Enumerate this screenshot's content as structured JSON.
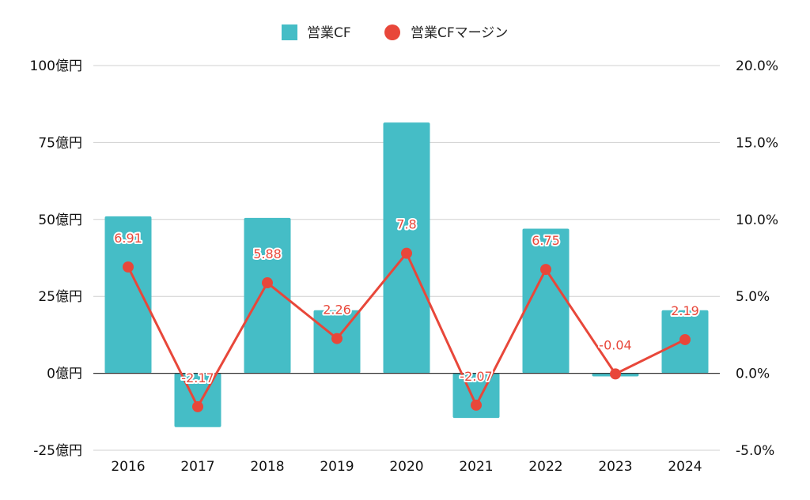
{
  "chart_data": {
    "type": "bar",
    "categories": [
      "2016",
      "2017",
      "2018",
      "2019",
      "2020",
      "2021",
      "2022",
      "2023",
      "2024"
    ],
    "series": [
      {
        "name": "営業CF",
        "kind": "bar",
        "axis": "left",
        "color": "#45bdc6",
        "values": [
          51,
          -17.5,
          50.5,
          20.5,
          81.5,
          -14.5,
          47,
          -1,
          20.5
        ]
      },
      {
        "name": "営業CFマージン",
        "kind": "line",
        "axis": "right",
        "color": "#e8473a",
        "values": [
          6.91,
          -2.17,
          5.88,
          2.26,
          7.8,
          -2.07,
          6.75,
          -0.04,
          2.19
        ],
        "data_labels": [
          "6.91",
          "-2.17",
          "5.88",
          "2.26",
          "7.8",
          "-2.07",
          "6.75",
          "-0.04",
          "2.19"
        ]
      }
    ],
    "y_left": {
      "ylim": [
        -25,
        100
      ],
      "ticks": [
        100,
        75,
        50,
        25,
        0,
        -25
      ],
      "tick_labels": [
        "100億円",
        "75億円",
        "50億円",
        "25億円",
        "0億円",
        "-25億円"
      ]
    },
    "y_right": {
      "ylim": [
        -5,
        20
      ],
      "ticks": [
        20,
        15,
        10,
        5,
        0,
        -5
      ],
      "tick_labels": [
        "20.0%",
        "15.0%",
        "10.0%",
        "5.0%",
        "0.0%",
        "-5.0%"
      ]
    },
    "grid": true,
    "legend_position": "top-center"
  }
}
